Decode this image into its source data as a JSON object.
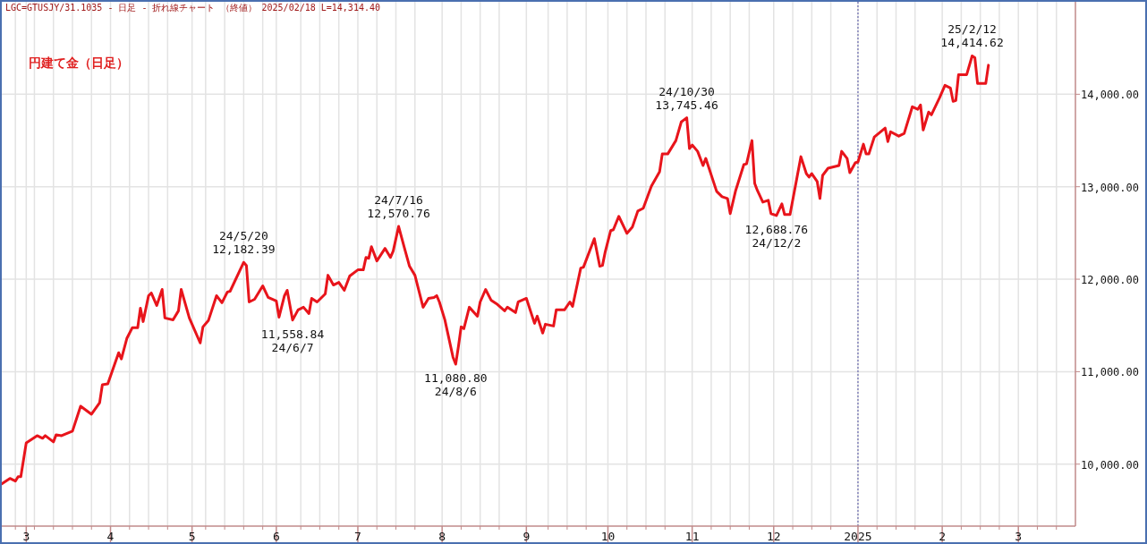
{
  "chart_data": {
    "type": "line",
    "title": "円建て金（日足）",
    "annotations": [
      "LGC=GTUSJY/31.1035 - 日足 - 折れ線チャート （終値） 2025/02/18 L=14,314.40",
      {
        "text": "24/5/20\n12,182.39",
        "x": "2024-05-20",
        "y": 12182.39
      },
      {
        "text": "11,558.84\n24/6/7",
        "x": "2024-06-07",
        "y": 11558.84
      },
      {
        "text": "24/7/16\n12,570.76",
        "x": "2024-07-16",
        "y": 12570.76
      },
      {
        "text": "11,080.80\n24/8/6",
        "x": "2024-08-06",
        "y": 11080.8
      },
      {
        "text": "24/10/30\n13,745.46",
        "x": "2024-10-30",
        "y": 13745.46
      },
      {
        "text": "12,688.76\n24/12/2",
        "x": "2024-12-02",
        "y": 12688.76
      },
      {
        "text": "25/2/12\n14,414.62",
        "x": "2025-02-12",
        "y": 14414.62
      }
    ],
    "color": "#e8141b",
    "x": [
      "2024-02-21",
      "2024-02-24",
      "2024-02-26",
      "2024-02-27",
      "2024-02-28",
      "2024-03-01",
      "2024-03-05",
      "2024-03-07",
      "2024-03-08",
      "2024-03-11",
      "2024-03-12",
      "2024-03-14",
      "2024-03-18",
      "2024-03-21",
      "2024-03-25",
      "2024-03-28",
      "2024-03-29",
      "2024-03-31",
      "2024-04-04",
      "2024-04-05",
      "2024-04-07",
      "2024-04-09",
      "2024-04-11",
      "2024-04-12",
      "2024-04-13",
      "2024-04-15",
      "2024-04-16",
      "2024-04-18",
      "2024-04-20",
      "2024-04-21",
      "2024-04-24",
      "2024-04-26",
      "2024-04-27",
      "2024-04-30",
      "2024-05-04",
      "2024-05-05",
      "2024-05-07",
      "2024-05-10",
      "2024-05-12",
      "2024-05-14",
      "2024-05-15",
      "2024-05-20",
      "2024-05-21",
      "2024-05-22",
      "2024-05-24",
      "2024-05-27",
      "2024-05-29",
      "2024-06-01",
      "2024-06-02",
      "2024-06-04",
      "2024-06-05",
      "2024-06-07",
      "2024-06-09",
      "2024-06-11",
      "2024-06-13",
      "2024-06-14",
      "2024-06-16",
      "2024-06-19",
      "2024-06-20",
      "2024-06-22",
      "2024-06-24",
      "2024-06-26",
      "2024-06-28",
      "2024-07-01",
      "2024-07-03",
      "2024-07-04",
      "2024-07-05",
      "2024-07-06",
      "2024-07-08",
      "2024-07-11",
      "2024-07-13",
      "2024-07-14",
      "2024-07-16",
      "2024-07-18",
      "2024-07-20",
      "2024-07-22",
      "2024-07-25",
      "2024-07-27",
      "2024-07-29",
      "2024-07-30",
      "2024-07-31",
      "2024-08-02",
      "2024-08-05",
      "2024-08-06",
      "2024-08-07",
      "2024-08-08",
      "2024-08-09",
      "2024-08-11",
      "2024-08-14",
      "2024-08-15",
      "2024-08-17",
      "2024-08-19",
      "2024-08-21",
      "2024-08-24",
      "2024-08-25",
      "2024-08-28",
      "2024-08-29",
      "2024-09-01",
      "2024-09-04",
      "2024-09-05",
      "2024-09-07",
      "2024-09-08",
      "2024-09-11",
      "2024-09-12",
      "2024-09-15",
      "2024-09-17",
      "2024-09-18",
      "2024-09-21",
      "2024-09-22",
      "2024-09-26",
      "2024-09-28",
      "2024-09-29",
      "2024-09-30",
      "2024-10-02",
      "2024-10-03",
      "2024-10-05",
      "2024-10-08",
      "2024-10-10",
      "2024-10-12",
      "2024-10-14",
      "2024-10-17",
      "2024-10-20",
      "2024-10-21",
      "2024-10-23",
      "2024-10-26",
      "2024-10-28",
      "2024-10-30",
      "2024-10-31",
      "2024-11-01",
      "2024-11-03",
      "2024-11-05",
      "2024-11-06",
      "2024-11-10",
      "2024-11-12",
      "2024-11-14",
      "2024-11-15",
      "2024-11-17",
      "2024-11-20",
      "2024-11-21",
      "2024-11-23",
      "2024-11-24",
      "2024-11-25",
      "2024-11-27",
      "2024-11-29",
      "2024-11-30",
      "2024-12-02",
      "2024-12-04",
      "2024-12-05",
      "2024-12-07",
      "2024-12-11",
      "2024-12-13",
      "2024-12-14",
      "2024-12-15",
      "2024-12-17",
      "2024-12-18",
      "2024-12-19",
      "2024-12-21",
      "2024-12-25",
      "2024-12-26",
      "2024-12-28",
      "2024-12-29",
      "2024-12-31",
      "2025-01-01",
      "2025-01-03",
      "2025-01-04",
      "2025-01-05",
      "2025-01-07",
      "2025-01-11",
      "2025-01-12",
      "2025-01-13",
      "2025-01-16",
      "2025-01-18",
      "2025-01-21",
      "2025-01-23",
      "2025-01-24",
      "2025-01-25",
      "2025-01-27",
      "2025-01-28",
      "2025-01-31",
      "2025-02-02",
      "2025-02-04",
      "2025-02-05",
      "2025-02-06",
      "2025-02-07",
      "2025-02-10",
      "2025-02-12",
      "2025-02-13",
      "2025-02-14",
      "2025-02-17",
      "2025-02-18"
    ],
    "values": [
      9788,
      9846,
      9817,
      9865,
      9865,
      10231,
      10308,
      10280,
      10308,
      10241,
      10318,
      10308,
      10357,
      10627,
      10540,
      10665,
      10858,
      10868,
      11205,
      11137,
      11359,
      11475,
      11475,
      11687,
      11542,
      11822,
      11851,
      11716,
      11889,
      11581,
      11561,
      11658,
      11889,
      11581,
      11311,
      11484,
      11552,
      11822,
      11745,
      11861,
      11870,
      12182.39,
      12149,
      11754,
      11783,
      11928,
      11803,
      11764,
      11590,
      11822,
      11880,
      11558.84,
      11668,
      11697,
      11629,
      11793,
      11754,
      11841,
      12043,
      11937,
      11966,
      11880,
      12034,
      12101,
      12101,
      12236,
      12226,
      12352,
      12198,
      12333,
      12236,
      12304,
      12570.76,
      12352,
      12140,
      12043,
      11697,
      11793,
      11803,
      11822,
      11754,
      11561,
      11157,
      11080.8,
      11272,
      11484,
      11465,
      11697,
      11600,
      11754,
      11889,
      11774,
      11735,
      11658,
      11697,
      11639,
      11754,
      11793,
      11523,
      11600,
      11417,
      11513,
      11494,
      11668,
      11668,
      11754,
      11706,
      12120,
      12130,
      12439,
      12140,
      12149,
      12294,
      12525,
      12535,
      12680,
      12496,
      12564,
      12737,
      12767,
      13007,
      13162,
      13354,
      13354,
      13499,
      13701,
      13745.46,
      13412,
      13451,
      13383,
      13229,
      13306,
      12950,
      12892,
      12873,
      12709,
      12959,
      13239,
      13248,
      13499,
      13036,
      12959,
      12834,
      12853,
      12709,
      12688.76,
      12815,
      12699,
      12699,
      13325,
      13142,
      13104,
      13142,
      13056,
      12873,
      13123,
      13200,
      13229,
      13383,
      13306,
      13152,
      13258,
      13268,
      13460,
      13354,
      13354,
      13537,
      13634,
      13489,
      13595,
      13547,
      13576,
      13865,
      13837,
      13885,
      13614,
      13807,
      13778,
      13962,
      14097,
      14068,
      13923,
      13932,
      14212,
      14212,
      14414.62,
      14395,
      14116,
      14116,
      14314.4
    ],
    "xlim": [
      "2024-02-21",
      "2025-03-22"
    ],
    "ylim": [
      9330,
      15000
    ],
    "xticks": [
      {
        "value": "2024-03-01",
        "label": "3"
      },
      {
        "value": "2024-04-01",
        "label": "4"
      },
      {
        "value": "2024-05-01",
        "label": "5"
      },
      {
        "value": "2024-06-01",
        "label": "6"
      },
      {
        "value": "2024-07-01",
        "label": "7"
      },
      {
        "value": "2024-08-01",
        "label": "8"
      },
      {
        "value": "2024-09-01",
        "label": "9"
      },
      {
        "value": "2024-10-01",
        "label": "10"
      },
      {
        "value": "2024-11-01",
        "label": "11"
      },
      {
        "value": "2024-12-01",
        "label": "12"
      },
      {
        "value": "2025-01-01",
        "label": "2025"
      },
      {
        "value": "2025-02-01",
        "label": "2"
      },
      {
        "value": "2025-03-01",
        "label": "3"
      },
      {
        "value": "2024-02-26",
        "label": null
      },
      {
        "value": "2024-03-04",
        "label": null
      },
      {
        "value": "2024-03-11",
        "label": null
      },
      {
        "value": "2024-03-18",
        "label": null
      },
      {
        "value": "2024-03-25",
        "label": null
      },
      {
        "value": "2024-04-08",
        "label": null
      },
      {
        "value": "2024-04-15",
        "label": null
      },
      {
        "value": "2024-04-22",
        "label": null
      },
      {
        "value": "2024-05-06",
        "label": null
      },
      {
        "value": "2024-05-13",
        "label": null
      },
      {
        "value": "2024-05-20",
        "label": null
      },
      {
        "value": "2024-05-27",
        "label": null
      },
      {
        "value": "2024-06-10",
        "label": null
      },
      {
        "value": "2024-06-17",
        "label": null
      },
      {
        "value": "2024-06-24",
        "label": null
      },
      {
        "value": "2024-07-08",
        "label": null
      },
      {
        "value": "2024-07-15",
        "label": null
      },
      {
        "value": "2024-07-22",
        "label": null
      },
      {
        "value": "2024-08-08",
        "label": null
      },
      {
        "value": "2024-08-15",
        "label": null
      },
      {
        "value": "2024-08-22",
        "label": null
      },
      {
        "value": "2024-09-09",
        "label": null
      },
      {
        "value": "2024-09-16",
        "label": null
      },
      {
        "value": "2024-09-23",
        "label": null
      },
      {
        "value": "2024-10-08",
        "label": null
      },
      {
        "value": "2024-10-15",
        "label": null
      },
      {
        "value": "2024-10-22",
        "label": null
      },
      {
        "value": "2024-11-08",
        "label": null
      },
      {
        "value": "2024-11-15",
        "label": null
      },
      {
        "value": "2024-11-22",
        "label": null
      },
      {
        "value": "2024-12-08",
        "label": null
      },
      {
        "value": "2024-12-15",
        "label": null
      },
      {
        "value": "2024-12-22",
        "label": null
      },
      {
        "value": "2025-01-08",
        "label": null
      },
      {
        "value": "2025-01-15",
        "label": null
      },
      {
        "value": "2025-01-22",
        "label": null
      },
      {
        "value": "2025-02-08",
        "label": null
      },
      {
        "value": "2025-02-15",
        "label": null
      },
      {
        "value": "2025-02-22",
        "label": null
      },
      {
        "value": "2025-03-08",
        "label": null
      },
      {
        "value": "2025-03-15",
        "label": null
      }
    ],
    "yticks": [
      {
        "value": 10000,
        "label": "10,000.00"
      },
      {
        "value": 11000,
        "label": "11,000.00"
      },
      {
        "value": 12000,
        "label": "12,000.00"
      },
      {
        "value": 13000,
        "label": "13,000.00"
      },
      {
        "value": 14000,
        "label": "14,000.00"
      }
    ],
    "grid": true,
    "ref_lines": [
      {
        "axis": "x",
        "value": "2025-01-01",
        "color": "#6b6bb0",
        "line_style": "dotted"
      }
    ]
  }
}
